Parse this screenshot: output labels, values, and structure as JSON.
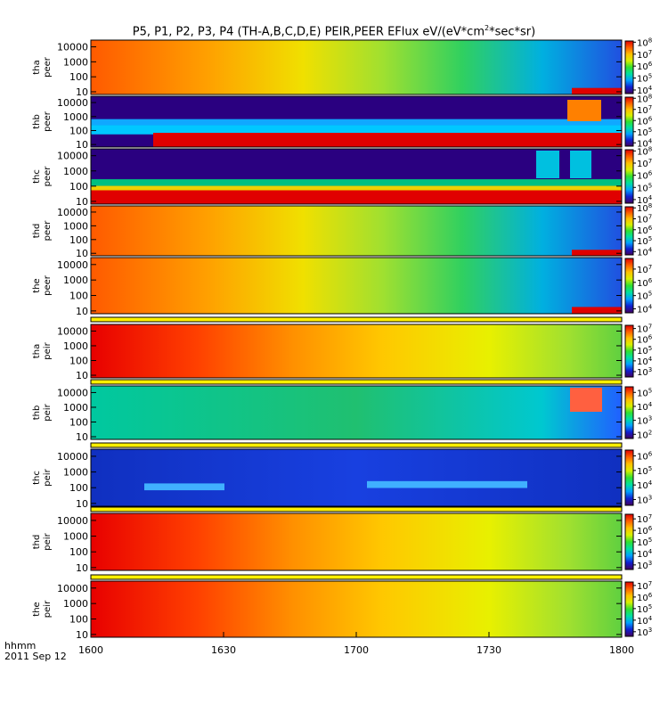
{
  "title": {
    "main": "P5, P1, P2, P3, P4 (TH-A,B,C,D,E) PEIR,PEER EFlux eV/(eV*cm",
    "sup": "2",
    "end": "*sec*sr)"
  },
  "time_axis": {
    "label_line1": "hhmm",
    "label_line2": "2011 Sep 12",
    "ticks": [
      "1600",
      "1630",
      "1700",
      "1730",
      "1800"
    ]
  },
  "chart_data": {
    "type": "heatmap",
    "title": "P5, P1, P2, P3, P4 (TH-A,B,C,D,E) PEIR,PEER EFlux eV/(eV*cm^2*sec*sr)",
    "x_range": [
      "1600",
      "1800"
    ],
    "x_label": "hhmm 2011 Sep 12",
    "y_scale": "log",
    "y_ticks": [
      "10",
      "100",
      "1000",
      "10000"
    ],
    "colorbar_scale": "log",
    "colormap": [
      "#44005f",
      "#1020d0",
      "#00a0ff",
      "#00e0a0",
      "#30e030",
      "#d8f000",
      "#ffc000",
      "#ff6000",
      "#e00000"
    ],
    "panels": [
      {
        "ylabel1": "tha",
        "ylabel2": "peer",
        "species": "electron",
        "probe": "A",
        "colorbar_ticks": [
          {
            "base": "10",
            "exp": "8"
          },
          {
            "base": "10",
            "exp": "7"
          },
          {
            "base": "10",
            "exp": "6"
          },
          {
            "base": "10",
            "exp": "5"
          },
          {
            "base": "10",
            "exp": "4"
          }
        ],
        "cbar_log_range": [
          3.7,
          8.1
        ],
        "banded": false
      },
      {
        "ylabel1": "thb",
        "ylabel2": "peer",
        "species": "electron",
        "probe": "B",
        "colorbar_ticks": [
          {
            "base": "10",
            "exp": "8"
          },
          {
            "base": "10",
            "exp": "7"
          },
          {
            "base": "10",
            "exp": "6"
          },
          {
            "base": "10",
            "exp": "5"
          },
          {
            "base": "10",
            "exp": "4"
          }
        ],
        "cbar_log_range": [
          3.7,
          8.1
        ],
        "banded": true
      },
      {
        "ylabel1": "thc",
        "ylabel2": "peer",
        "species": "electron",
        "probe": "C",
        "colorbar_ticks": [
          {
            "base": "10",
            "exp": "8"
          },
          {
            "base": "10",
            "exp": "7"
          },
          {
            "base": "10",
            "exp": "6"
          },
          {
            "base": "10",
            "exp": "5"
          },
          {
            "base": "10",
            "exp": "4"
          }
        ],
        "cbar_log_range": [
          3.7,
          8.1
        ],
        "banded": true
      },
      {
        "ylabel1": "thd",
        "ylabel2": "peer",
        "species": "electron",
        "probe": "D",
        "colorbar_ticks": [
          {
            "base": "10",
            "exp": "8"
          },
          {
            "base": "10",
            "exp": "7"
          },
          {
            "base": "10",
            "exp": "6"
          },
          {
            "base": "10",
            "exp": "5"
          },
          {
            "base": "10",
            "exp": "4"
          }
        ],
        "cbar_log_range": [
          3.7,
          8.1
        ],
        "banded": false
      },
      {
        "ylabel1": "the",
        "ylabel2": "peer",
        "species": "electron",
        "probe": "E",
        "colorbar_ticks": [
          {
            "base": "10",
            "exp": "7"
          },
          {
            "base": "10",
            "exp": "6"
          },
          {
            "base": "10",
            "exp": "5"
          },
          {
            "base": "10",
            "exp": "4"
          }
        ],
        "cbar_log_range": [
          3.7,
          7.8
        ],
        "banded": false
      },
      {
        "ylabel1": "tha",
        "ylabel2": "peir",
        "species": "ion",
        "probe": "A",
        "colorbar_ticks": [
          {
            "base": "10",
            "exp": "7"
          },
          {
            "base": "10",
            "exp": "6"
          },
          {
            "base": "10",
            "exp": "5"
          },
          {
            "base": "10",
            "exp": "4"
          },
          {
            "base": "10",
            "exp": "3"
          }
        ],
        "cbar_log_range": [
          2.5,
          7.3
        ],
        "banded": false
      },
      {
        "ylabel1": "thb",
        "ylabel2": "peir",
        "species": "ion",
        "probe": "B",
        "colorbar_ticks": [
          {
            "base": "10",
            "exp": "5"
          },
          {
            "base": "10",
            "exp": "4"
          },
          {
            "base": "10",
            "exp": "3"
          },
          {
            "base": "10",
            "exp": "2"
          }
        ],
        "cbar_log_range": [
          1.7,
          5.4
        ],
        "banded": false
      },
      {
        "ylabel1": "thc",
        "ylabel2": "peir",
        "species": "ion",
        "probe": "C",
        "colorbar_ticks": [
          {
            "base": "10",
            "exp": "6"
          },
          {
            "base": "10",
            "exp": "5"
          },
          {
            "base": "10",
            "exp": "4"
          },
          {
            "base": "10",
            "exp": "3"
          }
        ],
        "cbar_log_range": [
          2.6,
          6.4
        ],
        "banded": false
      },
      {
        "ylabel1": "thd",
        "ylabel2": "peir",
        "species": "ion",
        "probe": "D",
        "colorbar_ticks": [
          {
            "base": "10",
            "exp": "7"
          },
          {
            "base": "10",
            "exp": "6"
          },
          {
            "base": "10",
            "exp": "5"
          },
          {
            "base": "10",
            "exp": "4"
          },
          {
            "base": "10",
            "exp": "3"
          }
        ],
        "cbar_log_range": [
          2.6,
          7.4
        ],
        "banded": false
      },
      {
        "ylabel1": "the",
        "ylabel2": "peir",
        "species": "ion",
        "probe": "E",
        "colorbar_ticks": [
          {
            "base": "10",
            "exp": "7"
          },
          {
            "base": "10",
            "exp": "6"
          },
          {
            "base": "10",
            "exp": "5"
          },
          {
            "base": "10",
            "exp": "4"
          },
          {
            "base": "10",
            "exp": "3"
          }
        ],
        "cbar_log_range": [
          2.6,
          7.3
        ],
        "banded": false
      }
    ]
  }
}
